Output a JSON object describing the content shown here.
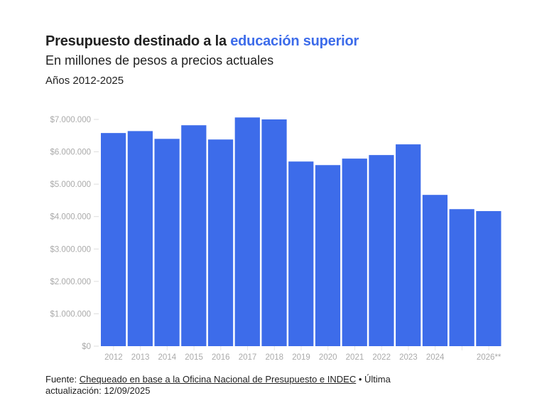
{
  "title_prefix": "Presupuesto destinado a la ",
  "title_highlight": "educación superior",
  "subtitle": "En millones de pesos a precios actuales",
  "period": "Años 2012-2025",
  "colors": {
    "bar": "#3d6cea",
    "highlight": "#3d6cea",
    "axis_text": "#aaaaaa"
  },
  "chart_data": {
    "type": "bar",
    "title": "Presupuesto destinado a la educación superior",
    "xlabel": "",
    "ylabel": "En millones de pesos a precios actuales",
    "categories": [
      "2012",
      "2013",
      "2014",
      "2015",
      "2016",
      "2017",
      "2018",
      "2019",
      "2020",
      "2021",
      "2022",
      "2023",
      "2024",
      "",
      "2026**"
    ],
    "values": [
      6580000,
      6640000,
      6400000,
      6820000,
      6380000,
      7060000,
      7000000,
      5700000,
      5590000,
      5790000,
      5900000,
      6230000,
      4670000,
      4230000,
      4170000
    ],
    "ylim": [
      0,
      7000000
    ],
    "yticks": [
      0,
      1000000,
      2000000,
      3000000,
      4000000,
      5000000,
      6000000,
      7000000
    ],
    "ytick_labels": [
      "$0",
      "$1.000.000",
      "$2.000.000",
      "$3.000.000",
      "$4.000.000",
      "$5.000.000",
      "$6.000.000",
      "$7.000.000"
    ],
    "grid": false,
    "legend": "none"
  },
  "footer": {
    "prefix": "Fuente: ",
    "link": "Chequeado en base a la Oficina Nacional de Presupuesto e INDEC",
    "suffix": " • Última actualización: 12/09/2025"
  }
}
